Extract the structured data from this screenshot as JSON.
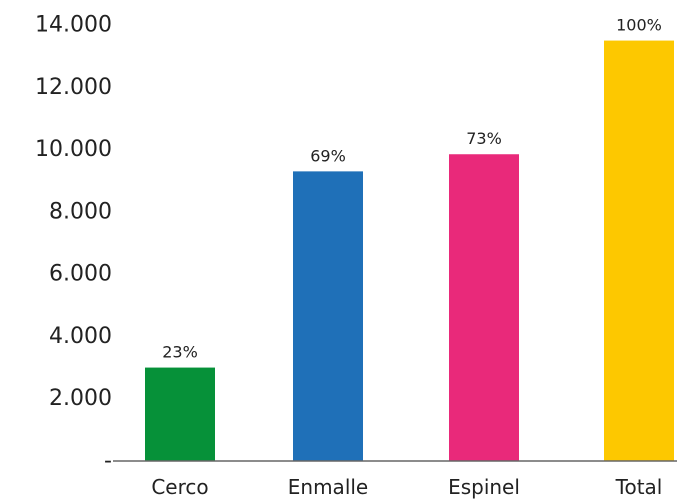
{
  "chart_data": {
    "type": "bar",
    "title": "",
    "xlabel": "",
    "ylabel": "",
    "categories": [
      "Cerco",
      "Enmalle",
      "Espinel",
      "Total"
    ],
    "values": [
      3000,
      9300,
      9850,
      13500
    ],
    "data_labels": [
      "23%",
      "69%",
      "73%",
      "100%"
    ],
    "colors": [
      "#069139",
      "#1f70b8",
      "#e9297a",
      "#fdc800"
    ],
    "ylim": [
      0,
      14000
    ],
    "yticks": [
      0,
      2000,
      4000,
      6000,
      8000,
      10000,
      12000,
      14000
    ],
    "ytick_labels": [
      "-",
      "2.000",
      "4.000",
      "6.000",
      "8.000",
      "10.000",
      "12.000",
      "14.000"
    ],
    "grid": false,
    "legend": "none"
  }
}
